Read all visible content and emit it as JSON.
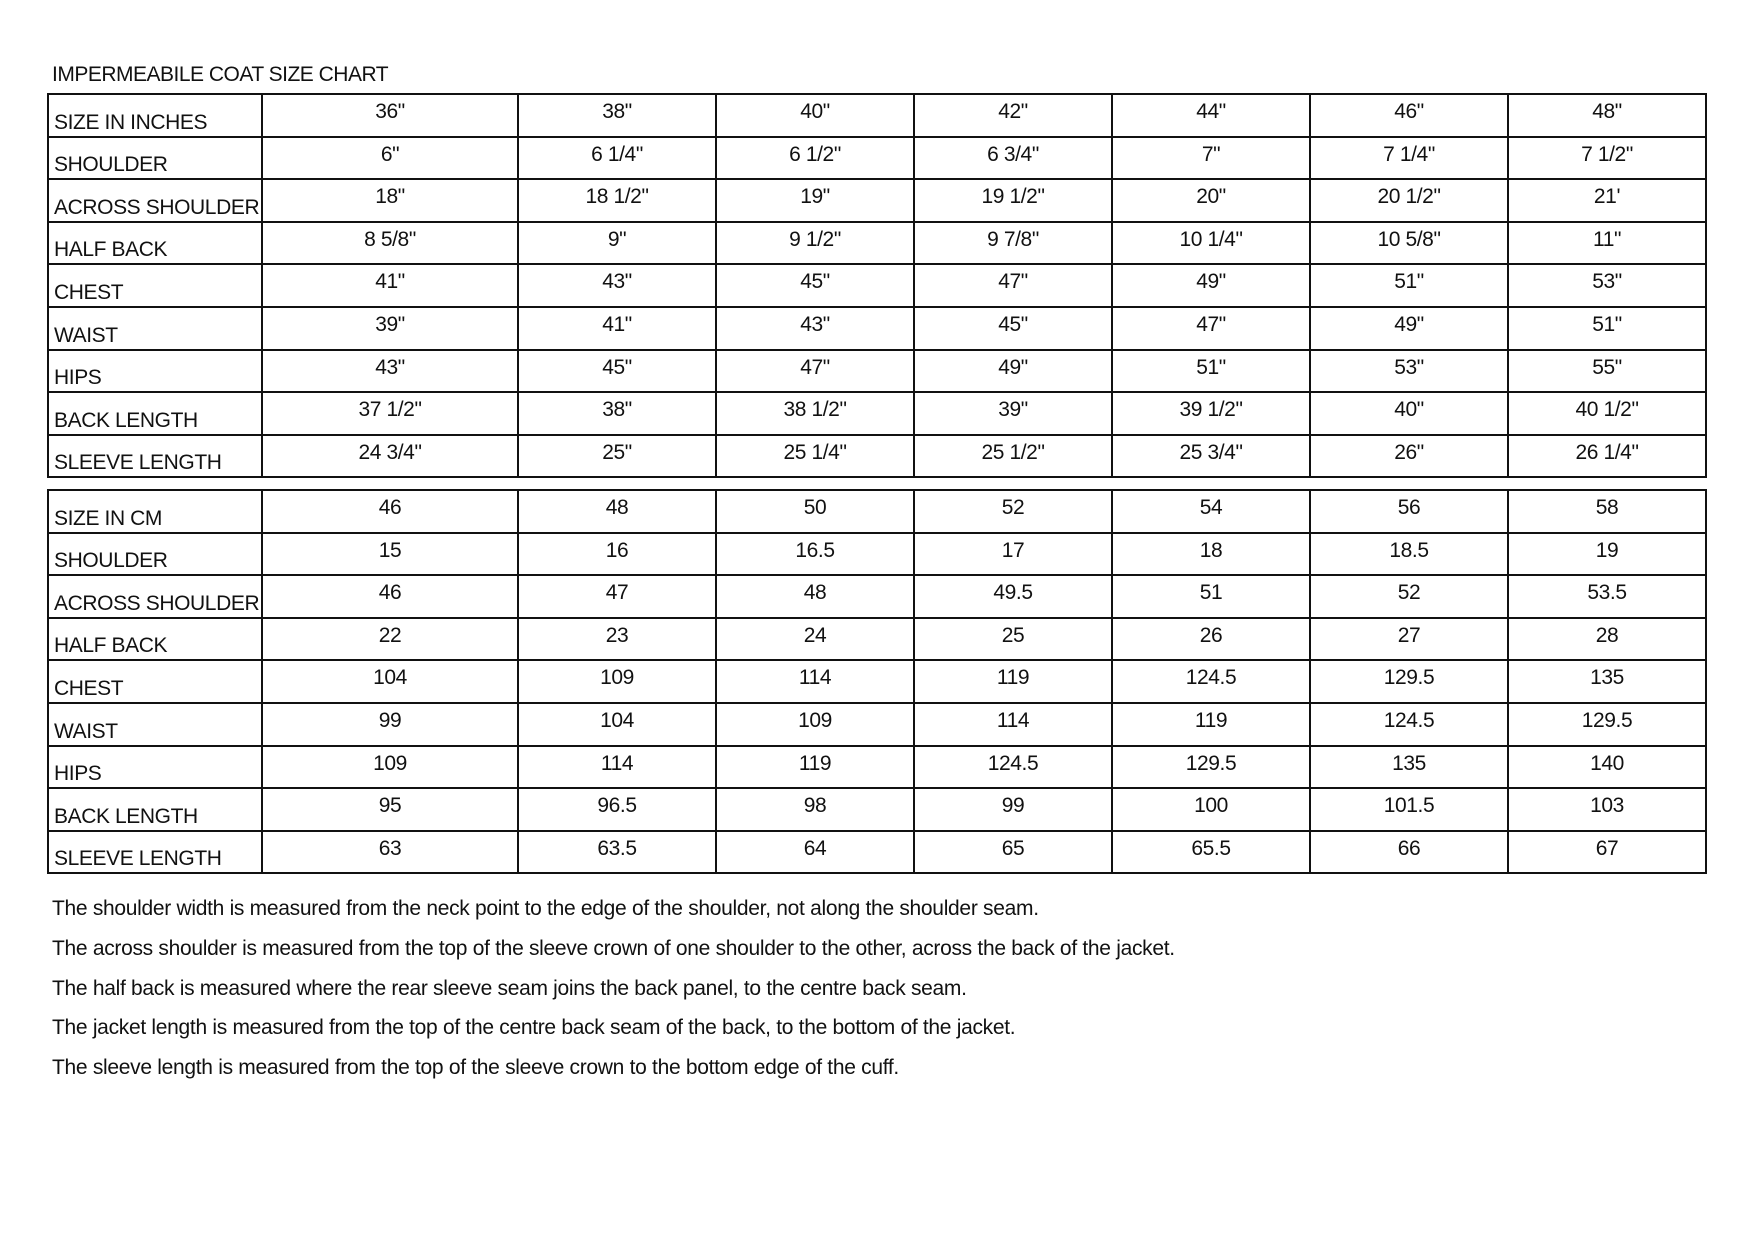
{
  "title": "IMPERMEABILE COAT SIZE CHART",
  "inches_table": {
    "rows": [
      {
        "label": "SIZE IN INCHES",
        "values": [
          "36\"",
          "38\"",
          "40\"",
          "42\"",
          "44\"",
          "46\"",
          "48\""
        ]
      },
      {
        "label": "SHOULDER",
        "values": [
          "6\"",
          "6 1/4\"",
          "6 1/2\"",
          "6 3/4\"",
          "7\"",
          "7 1/4\"",
          "7 1/2\""
        ]
      },
      {
        "label": "ACROSS SHOULDER",
        "values": [
          "18\"",
          "18 1/2\"",
          "19\"",
          "19 1/2\"",
          "20\"",
          "20 1/2\"",
          "21'"
        ]
      },
      {
        "label": "HALF BACK",
        "values": [
          "8 5/8\"",
          "9\"",
          "9 1/2\"",
          "9 7/8\"",
          "10 1/4\"",
          "10 5/8\"",
          "11\""
        ]
      },
      {
        "label": "CHEST",
        "values": [
          "41\"",
          "43\"",
          "45\"",
          "47\"",
          "49\"",
          "51\"",
          "53\""
        ]
      },
      {
        "label": "WAIST",
        "values": [
          "39\"",
          "41\"",
          "43\"",
          "45\"",
          "47\"",
          "49\"",
          "51\""
        ]
      },
      {
        "label": "HIPS",
        "values": [
          "43\"",
          "45\"",
          "47\"",
          "49\"",
          "51\"",
          "53\"",
          "55\""
        ]
      },
      {
        "label": "BACK LENGTH",
        "values": [
          "37 1/2\"",
          "38\"",
          "38 1/2\"",
          "39\"",
          "39 1/2\"",
          "40\"",
          "40 1/2\""
        ]
      },
      {
        "label": "SLEEVE LENGTH",
        "values": [
          "24 3/4\"",
          "25\"",
          "25 1/4\"",
          "25 1/2\"",
          "25 3/4\"",
          "26\"",
          "26 1/4\""
        ]
      }
    ]
  },
  "cm_table": {
    "rows": [
      {
        "label": "SIZE IN CM",
        "values": [
          "46",
          "48",
          "50",
          "52",
          "54",
          "56",
          "58"
        ]
      },
      {
        "label": "SHOULDER",
        "values": [
          "15",
          "16",
          "16.5",
          "17",
          "18",
          "18.5",
          "19"
        ]
      },
      {
        "label": "ACROSS SHOULDER",
        "values": [
          "46",
          "47",
          "48",
          "49.5",
          "51",
          "52",
          "53.5"
        ]
      },
      {
        "label": "HALF BACK",
        "values": [
          "22",
          "23",
          "24",
          "25",
          "26",
          "27",
          "28"
        ]
      },
      {
        "label": "CHEST",
        "values": [
          "104",
          "109",
          "114",
          "119",
          "124.5",
          "129.5",
          "135"
        ]
      },
      {
        "label": "WAIST",
        "values": [
          "99",
          "104",
          "109",
          "114",
          "119",
          "124.5",
          "129.5"
        ]
      },
      {
        "label": "HIPS",
        "values": [
          "109",
          "114",
          "119",
          "124.5",
          "129.5",
          "135",
          "140"
        ]
      },
      {
        "label": "BACK LENGTH",
        "values": [
          "95",
          "96.5",
          "98",
          "99",
          "100",
          "101.5",
          "103"
        ]
      },
      {
        "label": "SLEEVE LENGTH",
        "values": [
          "63",
          "63.5",
          "64",
          "65",
          "65.5",
          "66",
          "67"
        ]
      }
    ]
  },
  "notes": [
    "The shoulder width is measured from the neck point to the edge of the shoulder, not along the shoulder seam.",
    "The across shoulder is measured from the top of the sleeve crown of one shoulder to the other, across the back of the jacket.",
    "The half back is measured where the rear sleeve seam joins the back panel, to the centre back seam.",
    "The jacket length is measured from the top of the centre back seam of the back, to the bottom of the jacket.",
    "The sleeve length is measured from the top of the sleeve crown to the bottom edge of the cuff."
  ]
}
